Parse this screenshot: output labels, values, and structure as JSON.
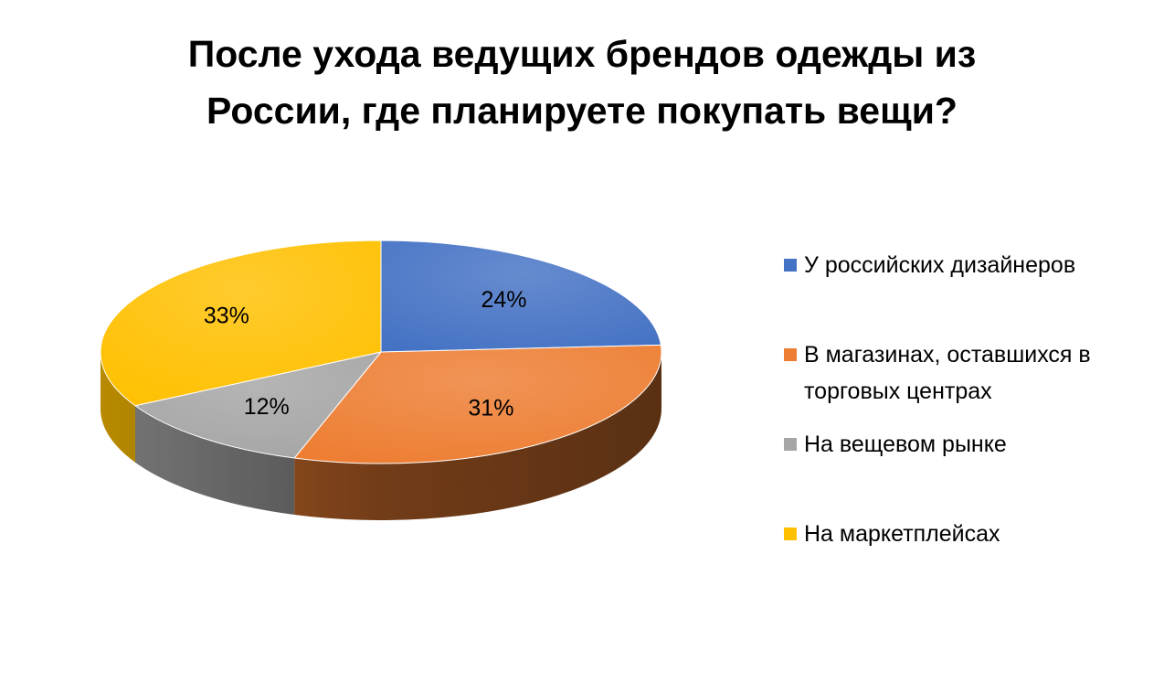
{
  "chart_data": {
    "type": "pie",
    "title_lines": [
      "После ухода ведущих брендов одежды из",
      "России, где планируете покупать вещи?"
    ],
    "categories": [
      "У российских дизайнеров",
      "В магазинах, оставшихся в торговых центрах",
      "На вещевом рынке",
      "На маркетплейсах"
    ],
    "values": [
      24,
      31,
      12,
      33
    ],
    "data_labels": [
      "24%",
      "31%",
      "12%",
      "33%"
    ],
    "colors": [
      "#4472C4",
      "#ED7D31",
      "#A5A5A5",
      "#FFC000"
    ],
    "style": "3d",
    "legend_position": "right"
  }
}
